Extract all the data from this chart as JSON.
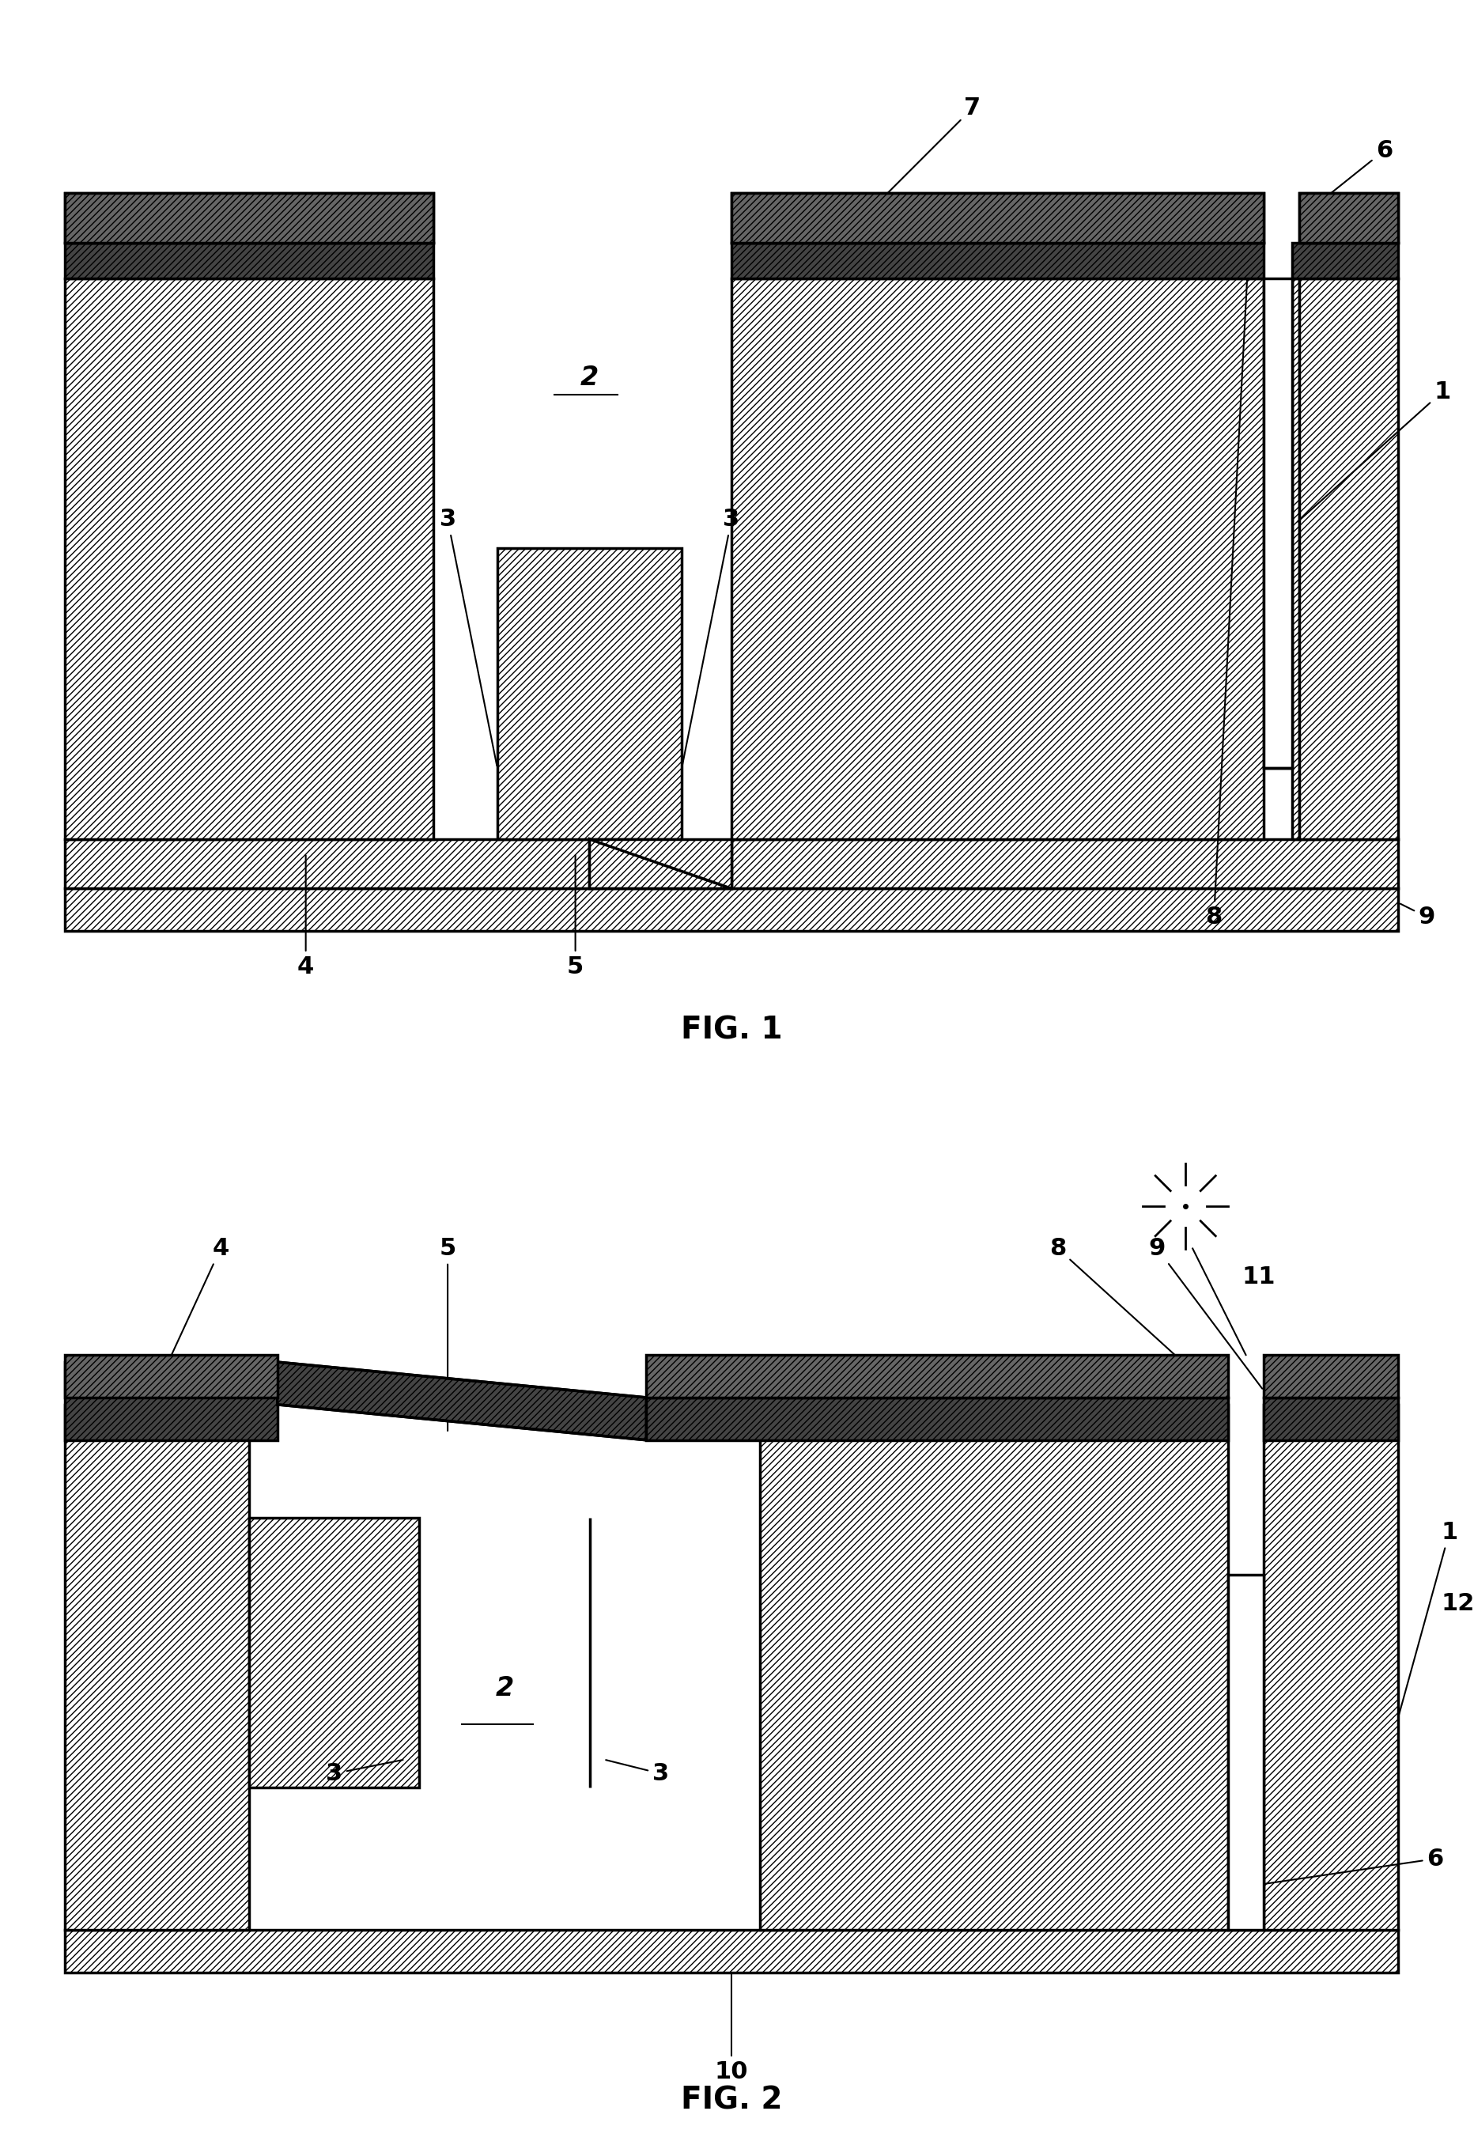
{
  "bg_color": "#ffffff",
  "line_color": "#000000",
  "hatch_color": "#000000",
  "fig1_label": "FIG. 1",
  "fig2_label": "FIG. 2",
  "font_size_label": 28,
  "font_size_number": 22
}
